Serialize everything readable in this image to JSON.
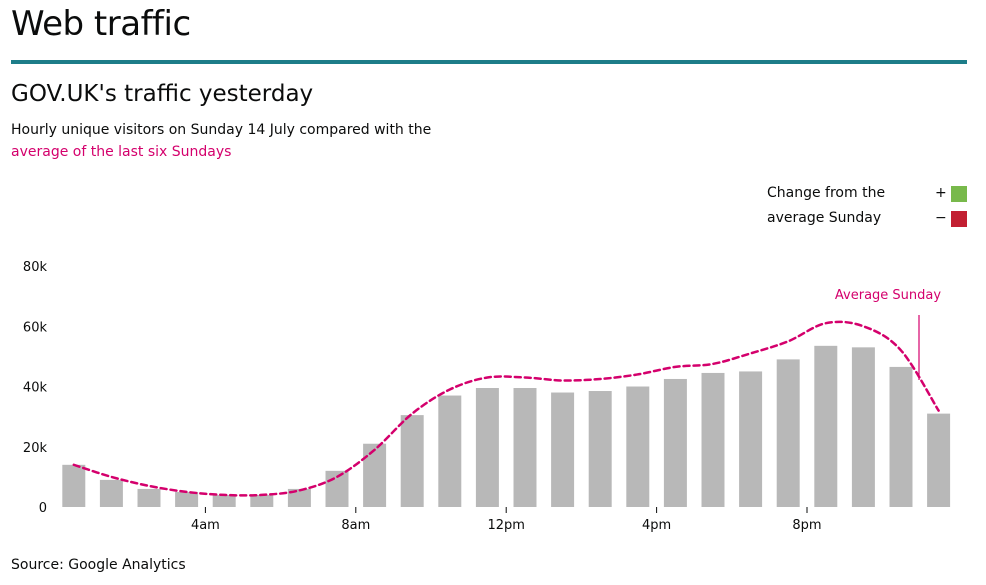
{
  "page": {
    "title": "Web traffic"
  },
  "chart_data": {
    "type": "bar",
    "title": "GOV.UK's traffic yesterday",
    "subtitle_prefix": "Hourly unique visitors on Sunday 14 July compared with the",
    "subtitle_highlight": "average of the last six Sundays",
    "x_tick_labels": [
      "4am",
      "8am",
      "12pm",
      "4pm",
      "8pm"
    ],
    "x_tick_hours": [
      4,
      8,
      12,
      16,
      20
    ],
    "y_ticks": [
      0,
      20000,
      40000,
      60000,
      80000
    ],
    "y_tick_labels": [
      "0",
      "20k",
      "40k",
      "60k",
      "80k"
    ],
    "ylim": [
      0,
      80000
    ],
    "hours": [
      0,
      1,
      2,
      3,
      4,
      5,
      6,
      7,
      8,
      9,
      10,
      11,
      12,
      13,
      14,
      15,
      16,
      17,
      18,
      19,
      20,
      21,
      22,
      23
    ],
    "values": [
      14000,
      9000,
      6000,
      5000,
      4000,
      4000,
      6000,
      12000,
      21000,
      30500,
      37000,
      39500,
      39500,
      38000,
      38500,
      40000,
      42500,
      44500,
      45000,
      49000,
      53500,
      53000,
      46500,
      31000
    ],
    "series": [
      {
        "name": "Average Sunday",
        "values": [
          14000,
          10000,
          7000,
          5000,
          4000,
          4000,
          5500,
          10000,
          19000,
          31000,
          39000,
          43000,
          43000,
          42000,
          42500,
          44000,
          46500,
          47500,
          51000,
          55000,
          61000,
          60000,
          52000,
          32000
        ]
      }
    ],
    "annotation": "Average Sunday",
    "legend": {
      "label_line1": "Change from the",
      "label_line2": "average Sunday",
      "plus_symbol": "+",
      "minus_symbol": "−",
      "plus_color": "#78b94b",
      "minus_color": "#c21f32"
    },
    "colors": {
      "bar": "#b8b8b8",
      "average_line": "#d4006c",
      "accent_rule": "#1d7d89"
    },
    "grid": false,
    "legend_position": "top-right"
  },
  "source": "Source: Google Analytics"
}
